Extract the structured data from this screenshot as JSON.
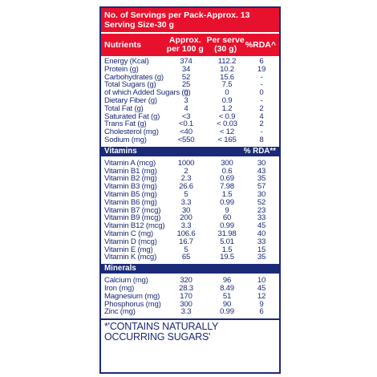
{
  "servings": {
    "line1": "No. of Servings per Pack-Approx. 13",
    "line2": "Serving Size-30 g"
  },
  "header": {
    "nutrients": "Nutrients",
    "approx": "Approx. per 100 g",
    "per_serve": "Per serve (30 g)",
    "rda": "%RDA^"
  },
  "nutrients": [
    {
      "name": "Energy (Kcal)",
      "per100": "374",
      "serve": "112.2",
      "rda": "6"
    },
    {
      "name": "Protein (g)",
      "per100": "34",
      "serve": "10.2",
      "rda": "19"
    },
    {
      "name": "Carbohydrates (g)",
      "per100": "52",
      "serve": "15.6",
      "rda": "-"
    },
    {
      "name": "Total Sugars (g)",
      "per100": "25",
      "serve": "7.5",
      "rda": "-"
    },
    {
      "name": "of which Added Sugars (g)",
      "per100": "0",
      "serve": "0",
      "rda": "0"
    },
    {
      "name": "Dietary Fiber (g)",
      "per100": "3",
      "serve": "0.9",
      "rda": "-"
    },
    {
      "name": "Total Fat (g)",
      "per100": "4",
      "serve": "1.2",
      "rda": "2"
    },
    {
      "name": "Saturated Fat (g)",
      "per100": "<3",
      "serve": "< 0.9",
      "rda": "4"
    },
    {
      "name": "Trans Fat (g)",
      "per100": "<0.1",
      "serve": "< 0.03",
      "rda": "2"
    },
    {
      "name": "Cholesterol (mg)",
      "per100": "<40",
      "serve": "< 12",
      "rda": "-"
    },
    {
      "name": "Sodium (mg)",
      "per100": "<550",
      "serve": "< 165",
      "rda": "8"
    }
  ],
  "vitamins_header": {
    "label": "Vitamins",
    "rda": "% RDA**"
  },
  "vitamins": [
    {
      "name": "Vitamin A (mcg)",
      "per100": "1000",
      "serve": "300",
      "rda": "30"
    },
    {
      "name": "Vitamin B1 (mg)",
      "per100": "2",
      "serve": "0.6",
      "rda": "43"
    },
    {
      "name": "Vitamin B2 (mg)",
      "per100": "2.3",
      "serve": "0.69",
      "rda": "35"
    },
    {
      "name": "Vitamin B3 (mg)",
      "per100": "26.6",
      "serve": "7.98",
      "rda": "57"
    },
    {
      "name": "Vitamin B5 (mg)",
      "per100": "5",
      "serve": "1.5",
      "rda": "30"
    },
    {
      "name": "Vitamin B6 (mg)",
      "per100": "3.3",
      "serve": "0.99",
      "rda": "52"
    },
    {
      "name": "Vitamin B7 (mcg)",
      "per100": "30",
      "serve": "9",
      "rda": "23"
    },
    {
      "name": "Vitamin B9 (mcg)",
      "per100": "200",
      "serve": "60",
      "rda": "33"
    },
    {
      "name": "Vitamin B12 (mcg)",
      "per100": "3.3",
      "serve": "0.99",
      "rda": "45"
    },
    {
      "name": "Vitamin C (mg)",
      "per100": "106.6",
      "serve": "31.98",
      "rda": "40"
    },
    {
      "name": "Vitamin D (mcg)",
      "per100": "16.7",
      "serve": "5.01",
      "rda": "33"
    },
    {
      "name": "Vitamin E (mg)",
      "per100": "5",
      "serve": "1.5",
      "rda": "15"
    },
    {
      "name": "Vitamin K (mcg)",
      "per100": "65",
      "serve": "19.5",
      "rda": "35"
    }
  ],
  "minerals_header": {
    "label": "Minerals"
  },
  "minerals": [
    {
      "name": "Calcium (mg)",
      "per100": "320",
      "serve": "96",
      "rda": "10"
    },
    {
      "name": "Iron (mg)",
      "per100": "28.3",
      "serve": "8.49",
      "rda": "45"
    },
    {
      "name": "Magnesium (mg)",
      "per100": "170",
      "serve": "51",
      "rda": "12"
    },
    {
      "name": "Phosphorus (mg)",
      "per100": "300",
      "serve": "90",
      "rda": "9"
    },
    {
      "name": "Zinc (mg)",
      "per100": "3.3",
      "serve": "0.99",
      "rda": "6"
    }
  ],
  "footnote": {
    "line1": "*'CONTAINS NATURALLY",
    "line2": "OCCURRING SUGARS'"
  },
  "colors": {
    "accent_red": "#e8112d",
    "navy": "#1b2a78"
  }
}
